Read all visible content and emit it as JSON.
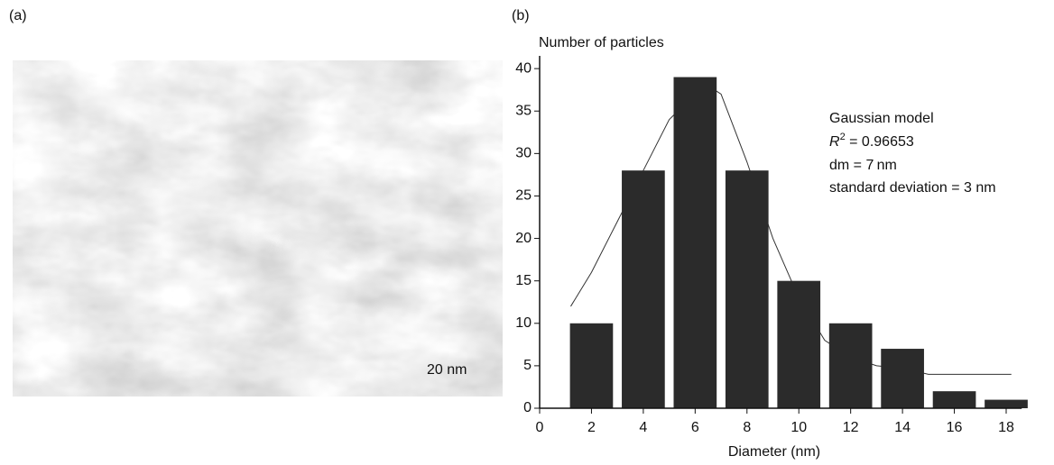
{
  "panel_a": {
    "label": "(a)",
    "scale_bar": "20 nm"
  },
  "panel_b_label": "(b)",
  "chart_data": {
    "type": "bar",
    "ylabel": "Number of particles",
    "xlabel": "Diameter (nm)",
    "x": [
      2,
      4,
      6,
      8,
      10,
      12,
      14,
      16,
      18
    ],
    "values": [
      10,
      28,
      39,
      28,
      15,
      10,
      7,
      2,
      1
    ],
    "color": "#2b2b2b",
    "fit": {
      "type": "line",
      "x": [
        1.2,
        2,
        3,
        4,
        5,
        6,
        6.5,
        7,
        8,
        9,
        10,
        11,
        12,
        13,
        14,
        15,
        16,
        17,
        18.2
      ],
      "values": [
        12,
        16,
        22,
        28,
        34,
        37,
        38,
        37,
        29,
        20,
        13,
        8,
        6,
        5,
        4.7,
        4,
        4,
        4,
        4
      ],
      "color": "#333333"
    },
    "annotation": {
      "line1": "Gaussian model",
      "r2_symbol": "R",
      "r2_exponent": "2",
      "r2_value": " = 0.96653",
      "line3": "dm = 7 nm",
      "line4": "standard deviation = 3 nm"
    },
    "xlim": [
      0,
      18.6
    ],
    "ylim": [
      0,
      41.5
    ],
    "xticks": [
      0,
      2,
      4,
      6,
      8,
      10,
      12,
      14,
      16,
      18
    ],
    "yticks": [
      0,
      5,
      10,
      15,
      20,
      25,
      30,
      35,
      40
    ]
  }
}
